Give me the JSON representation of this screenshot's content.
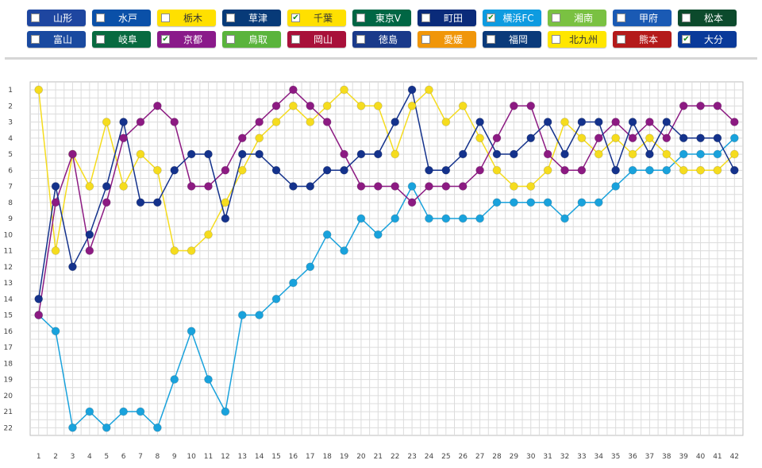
{
  "teams": [
    {
      "name": "山形",
      "bg": "#1e46a0",
      "fg": "#ffffff",
      "checked": false
    },
    {
      "name": "水戸",
      "bg": "#0a50a8",
      "fg": "#ffffff",
      "checked": false
    },
    {
      "name": "栃木",
      "bg": "#ffe000",
      "fg": "#333333",
      "checked": false
    },
    {
      "name": "草津",
      "bg": "#073a78",
      "fg": "#ffffff",
      "checked": false
    },
    {
      "name": "千葉",
      "bg": "#ffe000",
      "fg": "#333333",
      "checked": true
    },
    {
      "name": "東京V",
      "bg": "#006644",
      "fg": "#ffffff",
      "checked": false
    },
    {
      "name": "町田",
      "bg": "#0a2b7a",
      "fg": "#ffffff",
      "checked": false
    },
    {
      "name": "横浜FC",
      "bg": "#0e9be0",
      "fg": "#ffffff",
      "checked": true
    },
    {
      "name": "湘南",
      "bg": "#7ac142",
      "fg": "#ffffff",
      "checked": false
    },
    {
      "name": "甲府",
      "bg": "#1a5ab4",
      "fg": "#ffffff",
      "checked": false
    },
    {
      "name": "松本",
      "bg": "#0c4a2c",
      "fg": "#ffffff",
      "checked": false
    },
    {
      "name": "富山",
      "bg": "#1a4aa0",
      "fg": "#ffffff",
      "checked": false
    },
    {
      "name": "岐阜",
      "bg": "#086a40",
      "fg": "#ffffff",
      "checked": false
    },
    {
      "name": "京都",
      "bg": "#8a1a8a",
      "fg": "#ffffff",
      "checked": true
    },
    {
      "name": "鳥取",
      "bg": "#5ab43c",
      "fg": "#ffffff",
      "checked": false
    },
    {
      "name": "岡山",
      "bg": "#a8103a",
      "fg": "#ffffff",
      "checked": false
    },
    {
      "name": "徳島",
      "bg": "#1a3a8a",
      "fg": "#ffffff",
      "checked": false
    },
    {
      "name": "愛媛",
      "bg": "#f0960a",
      "fg": "#ffffff",
      "checked": false
    },
    {
      "name": "福岡",
      "bg": "#0a3a7a",
      "fg": "#ffffff",
      "checked": false
    },
    {
      "name": "北九州",
      "bg": "#ffe600",
      "fg": "#333333",
      "checked": false
    },
    {
      "name": "熊本",
      "bg": "#b41a1a",
      "fg": "#ffffff",
      "checked": false
    },
    {
      "name": "大分",
      "bg": "#0a3a9a",
      "fg": "#ffffff",
      "checked": true
    }
  ],
  "chart_data": {
    "type": "line",
    "x": [
      1,
      2,
      3,
      4,
      5,
      6,
      7,
      8,
      9,
      10,
      11,
      12,
      13,
      14,
      15,
      16,
      17,
      18,
      19,
      20,
      21,
      22,
      23,
      24,
      25,
      26,
      27,
      28,
      29,
      30,
      31,
      32,
      33,
      34,
      35,
      36,
      37,
      38,
      39,
      40,
      41,
      42
    ],
    "ylim": [
      1,
      22
    ],
    "y_inverted": true,
    "grid": true,
    "series": [
      {
        "name": "横浜FC",
        "color": "#19a2dc",
        "values": [
          15,
          16,
          22,
          21,
          22,
          21,
          21,
          22,
          19,
          16,
          19,
          21,
          15,
          15,
          14,
          13,
          12,
          10,
          11,
          9,
          10,
          9,
          7,
          9,
          9,
          9,
          9,
          8,
          8,
          8,
          8,
          9,
          8,
          8,
          7,
          6,
          6,
          6,
          5,
          5,
          5,
          4
        ]
      },
      {
        "name": "千葉",
        "color": "#f5dc1e",
        "values": [
          1,
          11,
          5,
          7,
          3,
          7,
          5,
          6,
          11,
          11,
          10,
          8,
          6,
          4,
          3,
          2,
          3,
          2,
          1,
          2,
          2,
          5,
          2,
          1,
          3,
          2,
          4,
          6,
          7,
          7,
          6,
          3,
          4,
          5,
          4,
          5,
          4,
          5,
          6,
          6,
          6,
          5
        ]
      },
      {
        "name": "京都",
        "color": "#8c1a82",
        "values": [
          15,
          8,
          5,
          11,
          8,
          4,
          3,
          2,
          3,
          7,
          7,
          6,
          4,
          3,
          2,
          1,
          2,
          3,
          5,
          7,
          7,
          7,
          8,
          7,
          7,
          7,
          6,
          4,
          2,
          2,
          5,
          6,
          6,
          4,
          3,
          4,
          3,
          4,
          2,
          2,
          2,
          3
        ]
      },
      {
        "name": "大分",
        "color": "#14328c",
        "values": [
          14,
          7,
          12,
          10,
          7,
          3,
          8,
          8,
          6,
          5,
          5,
          9,
          5,
          5,
          6,
          7,
          7,
          6,
          6,
          5,
          5,
          3,
          1,
          6,
          6,
          5,
          3,
          5,
          5,
          4,
          3,
          5,
          3,
          3,
          6,
          3,
          5,
          3,
          4,
          4,
          4,
          6
        ]
      }
    ]
  }
}
